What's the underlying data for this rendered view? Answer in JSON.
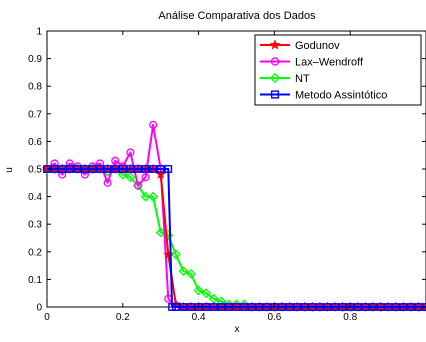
{
  "chart_data": {
    "type": "line",
    "title": "Análise Comparativa dos Dados",
    "xlabel": "x",
    "ylabel": "u",
    "xlim": [
      0,
      1
    ],
    "ylim": [
      0,
      1
    ],
    "x_ticks": [
      0,
      0.2,
      0.4,
      0.6,
      0.8
    ],
    "x_tick_labels": [
      "0",
      "0.2",
      "0.4",
      "0.6",
      "0.8"
    ],
    "y_ticks": [
      0,
      0.1,
      0.2,
      0.3,
      0.4,
      0.5,
      0.6,
      0.7,
      0.8,
      0.9,
      1
    ],
    "y_tick_labels": [
      "0",
      "0.1",
      "0.2",
      "0.3",
      "0.4",
      "0.5",
      "0.6",
      "0.7",
      "0.8",
      "0.9",
      "1"
    ],
    "grid": false,
    "legend_position": "top-right",
    "series": [
      {
        "name": "Godunov",
        "color": "#ff0000",
        "marker": "star",
        "x": [
          0.0,
          0.02,
          0.04,
          0.06,
          0.08,
          0.1,
          0.12,
          0.14,
          0.16,
          0.18,
          0.2,
          0.22,
          0.24,
          0.26,
          0.28,
          0.3,
          0.32,
          0.34,
          0.36,
          0.38,
          0.4,
          0.42,
          0.44,
          0.46,
          0.48,
          0.5,
          0.52,
          0.54,
          0.56,
          0.58,
          0.6,
          0.62,
          0.64,
          0.66,
          0.68,
          0.7,
          0.72,
          0.74,
          0.76,
          0.78,
          0.8,
          0.82,
          0.84,
          0.86,
          0.88,
          0.9,
          0.92,
          0.94,
          0.96,
          0.98,
          1.0
        ],
        "y": [
          0.5,
          0.5,
          0.5,
          0.5,
          0.5,
          0.5,
          0.5,
          0.5,
          0.5,
          0.5,
          0.5,
          0.5,
          0.5,
          0.5,
          0.5,
          0.48,
          0.19,
          0.01,
          0,
          0,
          0,
          0,
          0,
          0,
          0,
          0,
          0,
          0,
          0,
          0,
          0,
          0,
          0,
          0,
          0,
          0,
          0,
          0,
          0,
          0,
          0,
          0,
          0,
          0,
          0,
          0,
          0,
          0,
          0,
          0,
          0
        ]
      },
      {
        "name": "Lax–Wendroff",
        "color": "#ff00ff",
        "marker": "circle",
        "x": [
          0.0,
          0.02,
          0.04,
          0.06,
          0.08,
          0.1,
          0.12,
          0.14,
          0.16,
          0.18,
          0.2,
          0.22,
          0.24,
          0.26,
          0.28,
          0.3,
          0.32,
          0.34,
          0.36,
          0.38,
          0.4,
          0.42,
          0.44,
          0.46,
          0.48,
          0.5,
          0.52,
          0.54,
          0.56,
          0.58,
          0.6,
          0.62,
          0.64,
          0.66,
          0.68,
          0.7,
          0.72,
          0.74,
          0.76,
          0.78,
          0.8,
          0.82,
          0.84,
          0.86,
          0.88,
          0.9,
          0.92,
          0.94,
          0.96,
          0.98,
          1.0
        ],
        "y": [
          0.5,
          0.52,
          0.48,
          0.52,
          0.51,
          0.48,
          0.51,
          0.52,
          0.45,
          0.53,
          0.51,
          0.56,
          0.44,
          0.47,
          0.66,
          0.5,
          0.03,
          0,
          0,
          0,
          0,
          0,
          0,
          0,
          0,
          0,
          0,
          0,
          0,
          0,
          0,
          0,
          0,
          0,
          0,
          0,
          0,
          0,
          0,
          0,
          0,
          0,
          0,
          0,
          0,
          0,
          0,
          0,
          0,
          0,
          0
        ]
      },
      {
        "name": "NT",
        "color": "#00ff00",
        "marker": "diamond",
        "x": [
          0.0,
          0.02,
          0.04,
          0.06,
          0.08,
          0.1,
          0.12,
          0.14,
          0.16,
          0.18,
          0.2,
          0.22,
          0.24,
          0.26,
          0.28,
          0.3,
          0.32,
          0.34,
          0.36,
          0.38,
          0.4,
          0.42,
          0.44,
          0.46,
          0.48,
          0.5,
          0.52,
          0.54,
          0.56,
          0.58,
          0.6,
          0.62,
          0.64,
          0.66,
          0.68,
          0.7,
          0.72,
          0.74,
          0.76,
          0.78,
          0.8,
          0.82,
          0.84,
          0.86,
          0.88,
          0.9,
          0.92,
          0.94,
          0.96,
          0.98,
          1.0
        ],
        "y": [
          0.5,
          0.5,
          0.5,
          0.5,
          0.5,
          0.5,
          0.5,
          0.5,
          0.49,
          0.5,
          0.48,
          0.47,
          0.44,
          0.4,
          0.4,
          0.27,
          0.26,
          0.19,
          0.13,
          0.12,
          0.06,
          0.05,
          0.03,
          0.02,
          0.01,
          0.01,
          0.01,
          0,
          0,
          0,
          0,
          0,
          0,
          0,
          0,
          0,
          0,
          0,
          0,
          0,
          0,
          0,
          0,
          0,
          0,
          0,
          0,
          0,
          0,
          0,
          0
        ]
      },
      {
        "name": "Metodo Assintótico",
        "color": "#0000ff",
        "marker": "square",
        "x": [
          0.0,
          0.02,
          0.04,
          0.06,
          0.08,
          0.1,
          0.12,
          0.14,
          0.16,
          0.18,
          0.2,
          0.22,
          0.24,
          0.26,
          0.28,
          0.3,
          0.32,
          0.33,
          0.34,
          0.36,
          0.38,
          0.4,
          0.42,
          0.44,
          0.46,
          0.48,
          0.5,
          0.52,
          0.54,
          0.56,
          0.58,
          0.6,
          0.62,
          0.64,
          0.66,
          0.68,
          0.7,
          0.72,
          0.74,
          0.76,
          0.78,
          0.8,
          0.82,
          0.84,
          0.86,
          0.88,
          0.9,
          0.92,
          0.94,
          0.96,
          0.98,
          1.0
        ],
        "y": [
          0.5,
          0.5,
          0.5,
          0.5,
          0.5,
          0.5,
          0.5,
          0.5,
          0.5,
          0.5,
          0.5,
          0.5,
          0.5,
          0.5,
          0.5,
          0.5,
          0.5,
          0,
          0,
          0,
          0,
          0,
          0,
          0,
          0,
          0,
          0,
          0,
          0,
          0,
          0,
          0,
          0,
          0,
          0,
          0,
          0,
          0,
          0,
          0,
          0,
          0,
          0,
          0,
          0,
          0,
          0,
          0,
          0,
          0,
          0,
          0
        ]
      }
    ]
  }
}
